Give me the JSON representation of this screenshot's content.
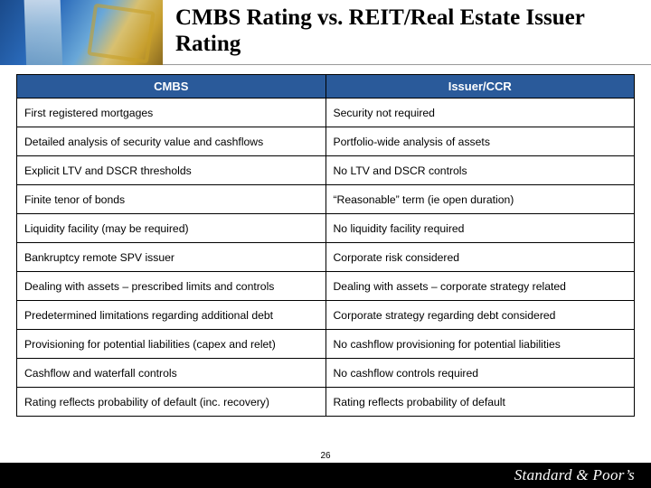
{
  "header": {
    "title": "CMBS Rating vs. REIT/Real Estate Issuer Rating"
  },
  "table": {
    "columns": [
      "CMBS",
      "Issuer/CCR"
    ],
    "header_bg": "#2a5a9a",
    "header_text_color": "#ffffff",
    "border_color": "#000000",
    "cell_fontsize": 12.2,
    "header_fontsize": 13,
    "rows": [
      [
        "First registered mortgages",
        "Security not required"
      ],
      [
        "Detailed analysis of security value and cashflows",
        "Portfolio-wide analysis of assets"
      ],
      [
        "Explicit LTV and DSCR thresholds",
        "No LTV and DSCR controls"
      ],
      [
        "Finite tenor of bonds",
        "“Reasonable” term (ie open duration)"
      ],
      [
        "Liquidity facility (may be required)",
        "No liquidity facility required"
      ],
      [
        "Bankruptcy remote SPV issuer",
        "Corporate risk considered"
      ],
      [
        "Dealing with assets – prescribed limits and controls",
        "Dealing with assets – corporate strategy related"
      ],
      [
        "Predetermined limitations regarding additional debt",
        "Corporate strategy regarding debt considered"
      ],
      [
        "Provisioning for potential liabilities (capex and relet)",
        "No cashflow provisioning for potential liabilities"
      ],
      [
        "Cashflow and waterfall controls",
        "No cashflow controls required"
      ],
      [
        "Rating reflects probability of default (inc. recovery)",
        "Rating reflects probability of default"
      ]
    ]
  },
  "footer": {
    "page_number": "26",
    "brand_text": "Standard & Poor’s"
  },
  "colors": {
    "footer_bg": "#000000",
    "footer_text": "#ffffff",
    "page_bg": "#ffffff"
  }
}
